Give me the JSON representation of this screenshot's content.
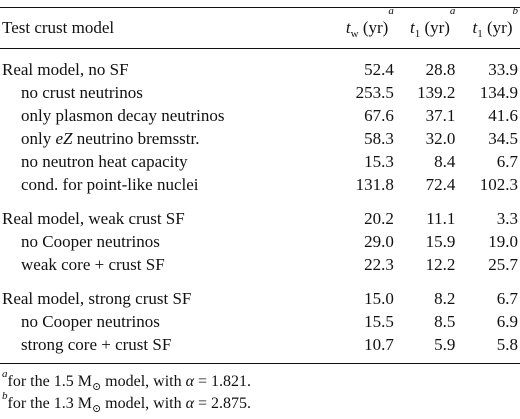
{
  "table": {
    "headers": {
      "model": "Test crust model",
      "tw_main": "t",
      "tw_sub": "w",
      "tw_unit": "(yr)",
      "tw_sup": "a",
      "t1a_main": "t",
      "t1a_sub": "1",
      "t1a_unit": "(yr)",
      "t1a_sup": "a",
      "t1b_main": "t",
      "t1b_sub": "1",
      "t1b_unit": "(yr)",
      "t1b_sup": "b"
    },
    "groups": [
      {
        "rows": [
          {
            "label": "Real model, no SF",
            "tw": "52.4",
            "t1a": "28.8",
            "t1b": "33.9"
          },
          {
            "label": "no crust neutrinos",
            "tw": "253.5",
            "t1a": "139.2",
            "t1b": "134.9"
          },
          {
            "label": "only plasmon decay neutrinos",
            "tw": "67.6",
            "t1a": "37.1",
            "t1b": "41.6"
          },
          {
            "label_pre": "only ",
            "label_em": "eZ",
            "label_post": " neutrino bremsstr.",
            "tw": "58.3",
            "t1a": "32.0",
            "t1b": "34.5"
          },
          {
            "label": "no neutron heat capacity",
            "tw": "15.3",
            "t1a": "8.4",
            "t1b": "6.7"
          },
          {
            "label": "cond. for point-like nuclei",
            "tw": "131.8",
            "t1a": "72.4",
            "t1b": "102.3"
          }
        ]
      },
      {
        "rows": [
          {
            "label": "Real model, weak crust SF",
            "tw": "20.2",
            "t1a": "11.1",
            "t1b": "3.3"
          },
          {
            "label": "no Cooper neutrinos",
            "tw": "29.0",
            "t1a": "15.9",
            "t1b": "19.0"
          },
          {
            "label": "weak core + crust SF",
            "tw": "22.3",
            "t1a": "12.2",
            "t1b": "25.7"
          }
        ]
      },
      {
        "rows": [
          {
            "label": "Real model, strong crust SF",
            "tw": "15.0",
            "t1a": "8.2",
            "t1b": "6.7"
          },
          {
            "label": "no Cooper neutrinos",
            "tw": "15.5",
            "t1a": "8.5",
            "t1b": "6.9"
          },
          {
            "label": "strong core + crust SF",
            "tw": "10.7",
            "t1a": "5.9",
            "t1b": "5.8"
          }
        ]
      }
    ]
  },
  "footnotes": {
    "a": {
      "mark": "a",
      "pre": "for the 1.5 M",
      "sun": "⊙",
      "mid": " model, with ",
      "alpha": "α",
      "post": " = 1.821."
    },
    "b": {
      "mark": "b",
      "pre": "for the 1.3 M",
      "sun": "⊙",
      "mid": " model, with ",
      "alpha": "α",
      "post": " = 2.875."
    }
  }
}
